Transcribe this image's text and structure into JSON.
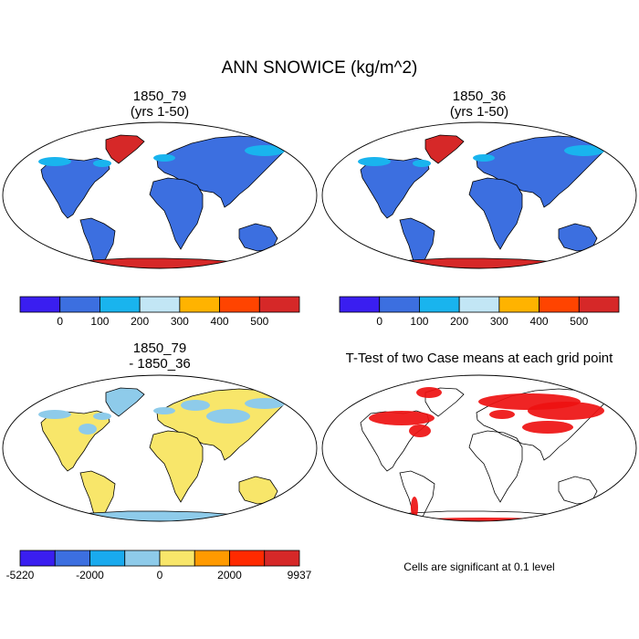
{
  "figure": {
    "title": "ANN SNOWICE (kg/m^2)"
  },
  "colors": {
    "ocean": "#ffffff",
    "outline": "#000000",
    "sig": "#ee1111"
  },
  "panels": [
    {
      "id": "case1",
      "title_line1": "1850_79",
      "title_line2": "(yrs 1-50)",
      "land_color": "#3c6fe0",
      "high_lat_color": "#d62828",
      "accent_color": "#19b4ee"
    },
    {
      "id": "case2",
      "title_line1": "1850_36",
      "title_line2": "(yrs 1-50)",
      "land_color": "#3c6fe0",
      "high_lat_color": "#d62828",
      "accent_color": "#19b4ee"
    },
    {
      "id": "diff",
      "title_line1": "1850_79",
      "title_line2": "- 1850_36",
      "land_color": "#f8e66a",
      "high_lat_color": "#8ecbea",
      "accent_color": "#8ecbea"
    },
    {
      "id": "ttest",
      "title": "T-Test of two Case means at each grid point",
      "note": "Cells are significant at 0.1 level"
    }
  ],
  "colorbars": [
    {
      "id": "cb1",
      "colors": [
        "#3a1ef0",
        "#3c6fe0",
        "#19b4ee",
        "#c2e6f5",
        "#ffb300",
        "#ff4400",
        "#d62828"
      ],
      "ticks": [
        "0",
        "100",
        "200",
        "300",
        "400",
        "500"
      ]
    },
    {
      "id": "cb2",
      "colors": [
        "#3a1ef0",
        "#3c6fe0",
        "#19b4ee",
        "#c2e6f5",
        "#ffb300",
        "#ff4400",
        "#d62828"
      ],
      "ticks": [
        "0",
        "100",
        "200",
        "300",
        "400",
        "500"
      ]
    },
    {
      "id": "cb3",
      "colors": [
        "#3a1ef0",
        "#3c6fe0",
        "#19aaee",
        "#8ecbea",
        "#f8e66a",
        "#ff9a00",
        "#ff2a00",
        "#d62828"
      ],
      "ticks": [
        "-5220",
        "-2000",
        "0",
        "2000",
        "9937"
      ]
    }
  ]
}
